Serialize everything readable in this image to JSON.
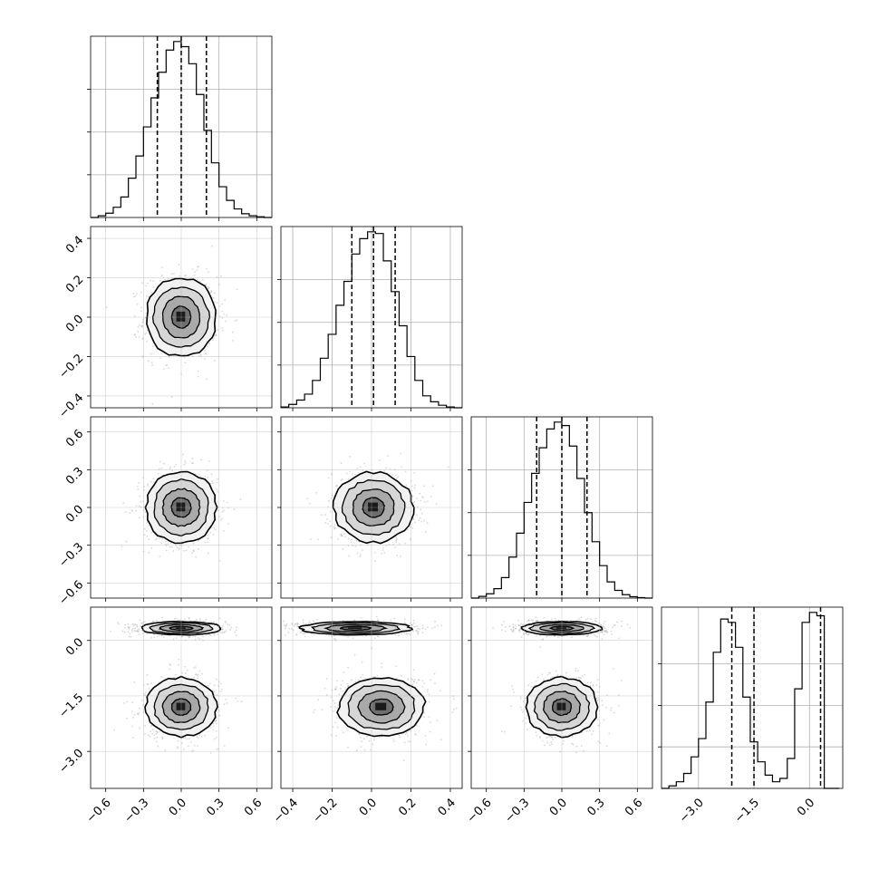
{
  "chart_data": {
    "type": "corner",
    "grid": true,
    "hist_color": "#000000",
    "point_color": "#aaaaaa",
    "quantile_style": "dashed",
    "parameters": [
      {
        "id": "p0",
        "range": [
          -0.72,
          0.72
        ],
        "ticks": [
          "−0.6",
          "−0.3",
          "0.0",
          "0.3",
          "0.6"
        ],
        "tick_values": [
          -0.6,
          -0.3,
          0.0,
          0.3,
          0.6
        ],
        "quantiles": [
          -0.19,
          0.0,
          0.2
        ],
        "hist_edges": [
          -0.72,
          -0.66,
          -0.6,
          -0.54,
          -0.48,
          -0.42,
          -0.36,
          -0.3,
          -0.24,
          -0.18,
          -0.12,
          -0.06,
          0.0,
          0.06,
          0.12,
          0.18,
          0.24,
          0.3,
          0.36,
          0.42,
          0.48,
          0.54,
          0.6,
          0.66,
          0.72
        ],
        "hist_counts": [
          0,
          10,
          25,
          60,
          120,
          230,
          360,
          530,
          700,
          850,
          980,
          1030,
          1000,
          900,
          720,
          510,
          320,
          180,
          100,
          50,
          22,
          10,
          4,
          0
        ]
      },
      {
        "id": "p1",
        "range": [
          -0.46,
          0.46
        ],
        "ticks": [
          "−0.4",
          "−0.2",
          "0.0",
          "0.2",
          "0.4"
        ],
        "tick_values": [
          -0.4,
          -0.2,
          0.0,
          0.2,
          0.4
        ],
        "quantiles": [
          -0.1,
          0.01,
          0.12
        ],
        "hist_edges": [
          -0.46,
          -0.42,
          -0.38,
          -0.34,
          -0.3,
          -0.26,
          -0.22,
          -0.18,
          -0.14,
          -0.1,
          -0.06,
          -0.02,
          0.02,
          0.06,
          0.1,
          0.14,
          0.18,
          0.22,
          0.26,
          0.3,
          0.34,
          0.38,
          0.42,
          0.46
        ],
        "hist_counts": [
          5,
          20,
          45,
          80,
          160,
          290,
          430,
          600,
          740,
          900,
          990,
          1030,
          1020,
          860,
          680,
          480,
          300,
          160,
          70,
          35,
          15,
          5,
          0
        ]
      },
      {
        "id": "p2",
        "range": [
          -0.72,
          0.72
        ],
        "ticks": [
          "−0.6",
          "−0.3",
          "0.0",
          "0.3",
          "0.6"
        ],
        "tick_values": [
          -0.6,
          -0.3,
          0.0,
          0.3,
          0.6
        ],
        "quantiles": [
          -0.2,
          0.0,
          0.2
        ],
        "hist_edges": [
          -0.72,
          -0.66,
          -0.6,
          -0.54,
          -0.48,
          -0.42,
          -0.36,
          -0.3,
          -0.24,
          -0.18,
          -0.12,
          -0.06,
          0.0,
          0.06,
          0.12,
          0.18,
          0.24,
          0.3,
          0.36,
          0.42,
          0.48,
          0.54,
          0.6,
          0.66,
          0.72
        ],
        "hist_counts": [
          0,
          10,
          25,
          55,
          120,
          240,
          380,
          560,
          730,
          880,
          990,
          1030,
          1010,
          890,
          700,
          500,
          330,
          190,
          95,
          45,
          20,
          8,
          3,
          0
        ]
      },
      {
        "id": "p3",
        "range": [
          -4.0,
          0.9
        ],
        "ticks": [
          "−3.0",
          "−1.5",
          "0.0"
        ],
        "tick_values": [
          -3.0,
          -1.5,
          0.0
        ],
        "quantiles": [
          -2.1,
          -1.5,
          0.3
        ],
        "hist_edges": [
          -4.0,
          -3.8,
          -3.6,
          -3.4,
          -3.2,
          -3.0,
          -2.8,
          -2.6,
          -2.4,
          -2.2,
          -2.0,
          -1.8,
          -1.6,
          -1.4,
          -1.2,
          -1.0,
          -0.8,
          -0.6,
          -0.4,
          -0.2,
          0.0,
          0.2,
          0.4,
          0.6,
          0.8
        ],
        "hist_counts": [
          0,
          15,
          40,
          90,
          190,
          300,
          520,
          820,
          1020,
          1000,
          850,
          550,
          280,
          160,
          80,
          40,
          60,
          180,
          600,
          1000,
          1060,
          1040,
          0,
          0
        ]
      }
    ],
    "panels_2d": [
      {
        "row": 1,
        "col": 0,
        "clusters": [
          {
            "cx": 0.0,
            "cy": 0.0,
            "sx": 0.14,
            "sy": 0.1
          }
        ]
      },
      {
        "row": 2,
        "col": 0,
        "clusters": [
          {
            "cx": 0.0,
            "cy": 0.0,
            "sx": 0.14,
            "sy": 0.14
          }
        ]
      },
      {
        "row": 2,
        "col": 1,
        "clusters": [
          {
            "cx": 0.01,
            "cy": 0.0,
            "sx": 0.1,
            "sy": 0.14
          }
        ]
      },
      {
        "row": 3,
        "col": 0,
        "clusters": [
          {
            "cx": 0.0,
            "cy": 0.33,
            "sx": 0.16,
            "sy": 0.09
          },
          {
            "cx": 0.0,
            "cy": -1.8,
            "sx": 0.14,
            "sy": 0.4
          }
        ]
      },
      {
        "row": 3,
        "col": 1,
        "clusters": [
          {
            "cx": -0.08,
            "cy": 0.33,
            "sx": 0.14,
            "sy": 0.09
          },
          {
            "cx": 0.05,
            "cy": -1.8,
            "sx": 0.11,
            "sy": 0.4
          }
        ]
      },
      {
        "row": 3,
        "col": 2,
        "clusters": [
          {
            "cx": 0.0,
            "cy": 0.33,
            "sx": 0.16,
            "sy": 0.09
          },
          {
            "cx": 0.0,
            "cy": -1.8,
            "sx": 0.14,
            "sy": 0.4
          }
        ]
      }
    ]
  }
}
